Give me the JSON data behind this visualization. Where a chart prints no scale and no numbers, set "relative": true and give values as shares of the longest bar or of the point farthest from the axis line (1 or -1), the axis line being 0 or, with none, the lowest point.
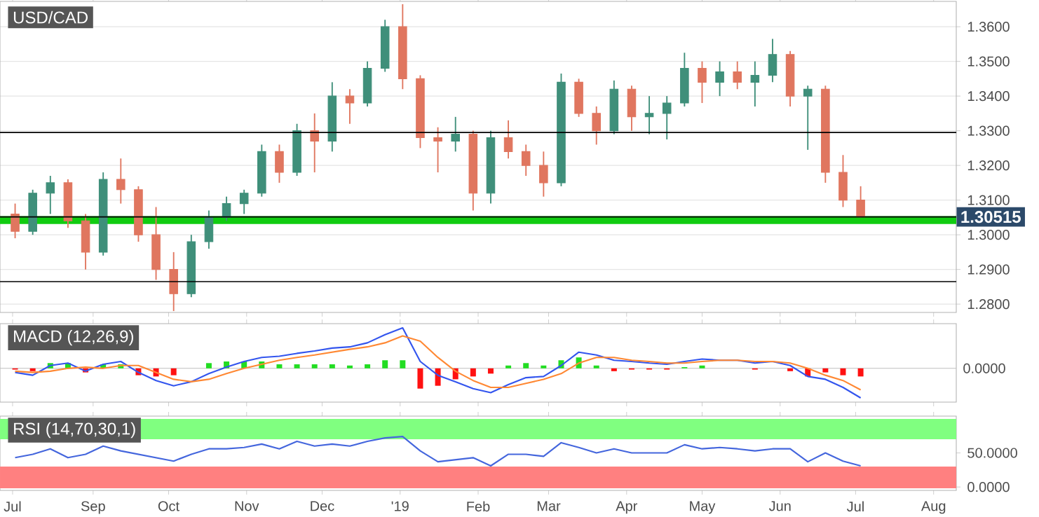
{
  "chart_data": [
    {
      "type": "candlestick",
      "title": "USD/CAD",
      "x": [
        "2018-08-01",
        "2018-08-08",
        "2018-08-15",
        "2018-08-22",
        "2018-08-29",
        "2018-09-05",
        "2018-09-12",
        "2018-09-19",
        "2018-09-26",
        "2018-10-03",
        "2018-10-10",
        "2018-10-17",
        "2018-10-24",
        "2018-10-31",
        "2018-11-07",
        "2018-11-14",
        "2018-11-21",
        "2018-11-28",
        "2018-12-05",
        "2018-12-12",
        "2018-12-19",
        "2018-12-26",
        "2019-01-02",
        "2019-01-09",
        "2019-01-16",
        "2019-01-23",
        "2019-01-30",
        "2019-02-06",
        "2019-02-13",
        "2019-02-20",
        "2019-02-27",
        "2019-03-06",
        "2019-03-13",
        "2019-03-20",
        "2019-03-27",
        "2019-04-03",
        "2019-04-10",
        "2019-04-17",
        "2019-04-24",
        "2019-05-01",
        "2019-05-08",
        "2019-05-15",
        "2019-05-22",
        "2019-05-29",
        "2019-06-05",
        "2019-06-12",
        "2019-06-19",
        "2019-06-26",
        "2019-07-03"
      ],
      "ohlc": [
        [
          1.306,
          1.309,
          1.299,
          1.301
        ],
        [
          1.301,
          1.313,
          1.3,
          1.312
        ],
        [
          1.312,
          1.317,
          1.306,
          1.315
        ],
        [
          1.315,
          1.316,
          1.302,
          1.304
        ],
        [
          1.304,
          1.306,
          1.29,
          1.295
        ],
        [
          1.295,
          1.318,
          1.294,
          1.316
        ],
        [
          1.316,
          1.322,
          1.309,
          1.313
        ],
        [
          1.313,
          1.314,
          1.298,
          1.3
        ],
        [
          1.3,
          1.308,
          1.287,
          1.29
        ],
        [
          1.29,
          1.295,
          1.278,
          1.283
        ],
        [
          1.283,
          1.3,
          1.282,
          1.298
        ],
        [
          1.298,
          1.307,
          1.296,
          1.305
        ],
        [
          1.305,
          1.311,
          1.304,
          1.309
        ],
        [
          1.309,
          1.313,
          1.306,
          1.312
        ],
        [
          1.312,
          1.326,
          1.311,
          1.324
        ],
        [
          1.324,
          1.326,
          1.315,
          1.318
        ],
        [
          1.318,
          1.332,
          1.317,
          1.33
        ],
        [
          1.33,
          1.335,
          1.318,
          1.327
        ],
        [
          1.327,
          1.344,
          1.324,
          1.34
        ],
        [
          1.34,
          1.342,
          1.332,
          1.338
        ],
        [
          1.338,
          1.35,
          1.337,
          1.348
        ],
        [
          1.348,
          1.362,
          1.347,
          1.36
        ],
        [
          1.36,
          1.3665,
          1.342,
          1.345
        ],
        [
          1.345,
          1.346,
          1.325,
          1.328
        ],
        [
          1.328,
          1.331,
          1.318,
          1.327
        ],
        [
          1.327,
          1.334,
          1.324,
          1.329
        ],
        [
          1.329,
          1.33,
          1.307,
          1.312
        ],
        [
          1.312,
          1.33,
          1.309,
          1.328
        ],
        [
          1.328,
          1.333,
          1.322,
          1.324
        ],
        [
          1.324,
          1.326,
          1.317,
          1.32
        ],
        [
          1.32,
          1.324,
          1.311,
          1.315
        ],
        [
          1.315,
          1.3465,
          1.314,
          1.344
        ],
        [
          1.344,
          1.345,
          1.334,
          1.335
        ],
        [
          1.335,
          1.337,
          1.326,
          1.33
        ],
        [
          1.33,
          1.3445,
          1.329,
          1.342
        ],
        [
          1.342,
          1.343,
          1.33,
          1.334
        ],
        [
          1.334,
          1.34,
          1.329,
          1.335
        ],
        [
          1.335,
          1.34,
          1.3275,
          1.338
        ],
        [
          1.338,
          1.3525,
          1.337,
          1.348
        ],
        [
          1.348,
          1.35,
          1.338,
          1.344
        ],
        [
          1.344,
          1.35,
          1.34,
          1.347
        ],
        [
          1.347,
          1.35,
          1.342,
          1.344
        ],
        [
          1.344,
          1.35,
          1.337,
          1.346
        ],
        [
          1.346,
          1.3565,
          1.344,
          1.352
        ],
        [
          1.352,
          1.353,
          1.337,
          1.34
        ],
        [
          1.34,
          1.343,
          1.3245,
          1.342
        ],
        [
          1.342,
          1.343,
          1.315,
          1.318
        ],
        [
          1.318,
          1.323,
          1.308,
          1.31
        ],
        [
          1.31,
          1.314,
          1.305,
          1.30515
        ]
      ],
      "xlim": [
        "2018-07-26",
        "2019-08-10"
      ],
      "ylim": [
        1.2776,
        1.3673
      ],
      "xticks": [
        {
          "value": "2018-07-31",
          "label": null
        },
        {
          "value": "2018-09-01",
          "label": null
        },
        {
          "value": "2018-10-01",
          "label": null
        },
        {
          "value": "2018-11-01",
          "label": null
        },
        {
          "value": "2018-12-01",
          "label": null
        },
        {
          "value": "2019-01-01",
          "label": null
        },
        {
          "value": "2019-02-01",
          "label": null
        },
        {
          "value": "2019-03-01",
          "label": null
        },
        {
          "value": "2019-04-01",
          "label": null
        },
        {
          "value": "2019-05-01",
          "label": null
        },
        {
          "value": "2019-06-01",
          "label": null
        },
        {
          "value": "2019-07-01",
          "label": null
        },
        {
          "value": "2019-08-01",
          "label": null
        }
      ],
      "yticks": [
        {
          "value": 1.28,
          "label": "1.2800"
        },
        {
          "value": 1.29,
          "label": "1.2900"
        },
        {
          "value": 1.3,
          "label": "1.3000"
        },
        {
          "value": 1.31,
          "label": "1.3100"
        },
        {
          "value": 1.32,
          "label": "1.3200"
        },
        {
          "value": 1.33,
          "label": "1.3300"
        },
        {
          "value": 1.34,
          "label": "1.3400"
        },
        {
          "value": 1.35,
          "label": "1.3500"
        },
        {
          "value": 1.36,
          "label": "1.3600"
        }
      ],
      "grid": "y",
      "tick_labels": "y",
      "ref_lines": [
        {
          "axis": "y",
          "value": 1.3295,
          "color": "#000000"
        },
        {
          "axis": "y",
          "value": 1.30515,
          "label": "1.30515",
          "color": "#000000"
        },
        {
          "axis": "y",
          "value": 1.2865,
          "color": "#000000"
        }
      ],
      "bands": [
        {
          "axis": "y",
          "from": 1.3031,
          "to": 1.3054,
          "color": "#11cc11"
        }
      ]
    },
    {
      "type": "line",
      "title": "MACD (12,26,9)",
      "relative": true,
      "x": [
        "2018-08-01",
        "2018-08-08",
        "2018-08-15",
        "2018-08-22",
        "2018-08-29",
        "2018-09-05",
        "2018-09-12",
        "2018-09-19",
        "2018-09-26",
        "2018-10-03",
        "2018-10-10",
        "2018-10-17",
        "2018-10-24",
        "2018-10-31",
        "2018-11-07",
        "2018-11-14",
        "2018-11-21",
        "2018-11-28",
        "2018-12-05",
        "2018-12-12",
        "2018-12-19",
        "2018-12-26",
        "2019-01-02",
        "2019-01-09",
        "2019-01-16",
        "2019-01-23",
        "2019-01-30",
        "2019-02-06",
        "2019-02-13",
        "2019-02-20",
        "2019-02-27",
        "2019-03-06",
        "2019-03-13",
        "2019-03-20",
        "2019-03-27",
        "2019-04-03",
        "2019-04-10",
        "2019-04-17",
        "2019-04-24",
        "2019-05-01",
        "2019-05-08",
        "2019-05-15",
        "2019-05-22",
        "2019-05-29",
        "2019-06-05",
        "2019-06-12",
        "2019-06-19",
        "2019-06-26",
        "2019-07-03"
      ],
      "series": [
        {
          "type": "bar",
          "colors": [
            "#ff1111",
            "#ff1111",
            "#22dd22",
            "#22dd22",
            "#ff1111",
            "#22dd22",
            "#22dd22",
            "#ff1111",
            "#ff1111",
            "#ff1111",
            "#22dd22",
            "#22dd22",
            "#22dd22",
            "#22dd22",
            "#22dd22",
            "#22dd22",
            "#22dd22",
            "#22dd22",
            "#22dd22",
            "#22dd22",
            "#22dd22",
            "#22dd22",
            "#22dd22",
            "#ff1111",
            "#ff1111",
            "#ff1111",
            "#ff1111",
            "#ff1111",
            "#22dd22",
            "#22dd22",
            "#22dd22",
            "#22dd22",
            "#22dd22",
            "#22dd22",
            "#ff1111",
            "#ff1111",
            "#ff1111",
            "#ff1111",
            "#22dd22",
            "#22dd22",
            "#22dd22",
            "#22dd22",
            "#ff1111",
            "#22dd22",
            "#ff1111",
            "#ff1111",
            "#ff1111",
            "#ff1111",
            "#ff1111"
          ],
          "values": [
            -0.03,
            -0.07,
            0.13,
            0.13,
            -0.1,
            0.1,
            0.1,
            -0.17,
            -0.2,
            -0.17,
            0,
            0.13,
            0.17,
            0.17,
            0.17,
            0.1,
            0.1,
            0.1,
            0.1,
            0.07,
            0.1,
            0.2,
            0.2,
            -0.5,
            -0.43,
            -0.27,
            -0.2,
            -0.13,
            0.07,
            0.13,
            0.07,
            0.2,
            0.27,
            0.07,
            -0.07,
            -0.03,
            -0.03,
            -0.03,
            0.03,
            0.07,
            0,
            0,
            -0.03,
            0,
            -0.07,
            -0.2,
            -0.1,
            -0.17,
            -0.2
          ]
        },
        {
          "color": "#3355ee",
          "values": [
            -0.1,
            -0.17,
            0.07,
            0.13,
            -0.07,
            0.1,
            0.17,
            -0.1,
            -0.3,
            -0.43,
            -0.33,
            -0.13,
            0.03,
            0.17,
            0.27,
            0.3,
            0.37,
            0.43,
            0.5,
            0.53,
            0.63,
            0.83,
            1,
            0.17,
            -0.17,
            -0.33,
            -0.5,
            -0.6,
            -0.4,
            -0.23,
            -0.2,
            0.07,
            0.4,
            0.33,
            0.2,
            0.17,
            0.13,
            0.1,
            0.17,
            0.23,
            0.2,
            0.2,
            0.13,
            0.17,
            0.07,
            -0.2,
            -0.27,
            -0.47,
            -0.73
          ]
        },
        {
          "color": "#ff8833",
          "values": [
            -0.07,
            -0.1,
            -0.07,
            0,
            0.03,
            0,
            0.07,
            0.07,
            -0.1,
            -0.27,
            -0.33,
            -0.27,
            -0.13,
            0,
            0.1,
            0.2,
            0.27,
            0.33,
            0.4,
            0.47,
            0.53,
            0.63,
            0.8,
            0.67,
            0.27,
            -0.07,
            -0.3,
            -0.47,
            -0.47,
            -0.37,
            -0.27,
            -0.13,
            0.13,
            0.27,
            0.27,
            0.2,
            0.17,
            0.13,
            0.13,
            0.17,
            0.2,
            0.2,
            0.17,
            0.17,
            0.13,
            0,
            -0.17,
            -0.3,
            -0.53
          ]
        }
      ],
      "xlim": [
        "2018-07-26",
        "2019-08-10"
      ],
      "tick_labels": false,
      "xticks": [
        {
          "value": "2018-07-31",
          "label": null
        },
        {
          "value": "2018-09-01",
          "label": null
        },
        {
          "value": "2018-10-01",
          "label": null
        },
        {
          "value": "2018-11-01",
          "label": null
        },
        {
          "value": "2018-12-01",
          "label": null
        },
        {
          "value": "2019-01-01",
          "label": null
        },
        {
          "value": "2019-02-01",
          "label": null
        },
        {
          "value": "2019-03-01",
          "label": null
        },
        {
          "value": "2019-04-01",
          "label": null
        },
        {
          "value": "2019-05-01",
          "label": null
        },
        {
          "value": "2019-06-01",
          "label": null
        },
        {
          "value": "2019-07-01",
          "label": null
        },
        {
          "value": "2019-08-01",
          "label": null
        }
      ],
      "annotations": [
        "0.0000"
      ]
    },
    {
      "type": "line",
      "title": "RSI (14,70,30,1)",
      "x": [
        "2018-08-01",
        "2018-08-08",
        "2018-08-15",
        "2018-08-22",
        "2018-08-29",
        "2018-09-05",
        "2018-09-12",
        "2018-09-19",
        "2018-09-26",
        "2018-10-03",
        "2018-10-10",
        "2018-10-17",
        "2018-10-24",
        "2018-10-31",
        "2018-11-07",
        "2018-11-14",
        "2018-11-21",
        "2018-11-28",
        "2018-12-05",
        "2018-12-12",
        "2018-12-19",
        "2018-12-26",
        "2019-01-02",
        "2019-01-09",
        "2019-01-16",
        "2019-01-23",
        "2019-01-30",
        "2019-02-06",
        "2019-02-13",
        "2019-02-20",
        "2019-02-27",
        "2019-03-06",
        "2019-03-13",
        "2019-03-20",
        "2019-03-27",
        "2019-04-03",
        "2019-04-10",
        "2019-04-17",
        "2019-04-24",
        "2019-05-01",
        "2019-05-08",
        "2019-05-15",
        "2019-05-22",
        "2019-05-29",
        "2019-06-05",
        "2019-06-12",
        "2019-06-19",
        "2019-06-26",
        "2019-07-03"
      ],
      "series": [
        {
          "color": "#4466dd",
          "values": [
            43,
            48,
            56,
            43,
            48,
            60,
            53,
            48,
            43,
            38,
            48,
            56,
            56,
            58,
            63,
            56,
            67,
            60,
            63,
            60,
            67,
            72,
            74,
            53,
            37,
            40,
            43,
            31,
            48,
            48,
            45,
            65,
            58,
            50,
            56,
            50,
            50,
            50,
            62,
            56,
            58,
            56,
            53,
            56,
            56,
            37,
            50,
            38,
            31
          ]
        }
      ],
      "xlim": [
        "2018-07-26",
        "2019-08-10"
      ],
      "ylim": [
        -5,
        104
      ],
      "xticks": [
        {
          "value": "2018-07-31",
          "label": "Jul"
        },
        {
          "value": "2018-09-01",
          "label": "Sep"
        },
        {
          "value": "2018-10-01",
          "label": "Oct"
        },
        {
          "value": "2018-11-01",
          "label": "Nov"
        },
        {
          "value": "2018-12-01",
          "label": "Dec"
        },
        {
          "value": "2019-01-01",
          "label": "'19"
        },
        {
          "value": "2019-02-01",
          "label": "Feb"
        },
        {
          "value": "2019-03-01",
          "label": "Mar"
        },
        {
          "value": "2019-04-01",
          "label": "Apr"
        },
        {
          "value": "2019-05-01",
          "label": "May"
        },
        {
          "value": "2019-06-01",
          "label": "Jun"
        },
        {
          "value": "2019-07-01",
          "label": "Jul"
        },
        {
          "value": "2019-08-01",
          "label": "Aug"
        }
      ],
      "yticks": [
        {
          "value": 0,
          "label": "0.0000"
        },
        {
          "value": 50,
          "label": "50.0000"
        }
      ],
      "bands": [
        {
          "axis": "y",
          "from": 70,
          "to": 100,
          "color": "#80ff80"
        },
        {
          "axis": "y",
          "from": -2,
          "to": 30,
          "color": "#ff8080"
        }
      ]
    }
  ]
}
